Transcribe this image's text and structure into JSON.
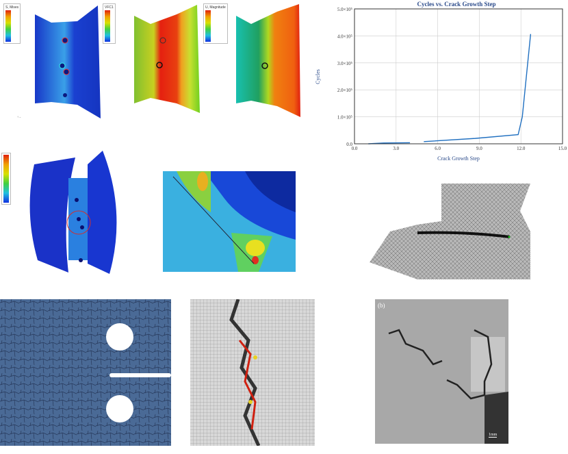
{
  "panels": {
    "fea_stress": {
      "legend_title": "S, Mises"
    },
    "fea_second": {
      "legend_title": "VFC1"
    },
    "fea_displacement": {
      "legend_title": "U, Magnitude"
    },
    "micrograph": {
      "label": "(b)",
      "scale_bar": "1mm"
    }
  },
  "colors": {
    "fea_blue": "#1f3fd0",
    "fea_red": "#e0200c",
    "fea_green": "#7ac62a",
    "chart_line": "#1f6fc0",
    "grain_blue": "#4a6a96"
  },
  "chart_data": {
    "type": "line",
    "title": "Cycles vs. Crack Growth Step",
    "xlabel": "Crack Growth Step",
    "ylabel": "Cycles",
    "xlim": [
      0,
      15
    ],
    "ylim": [
      0,
      500000
    ],
    "x_ticks": [
      "0.0",
      "3.0",
      "6.0",
      "9.0",
      "12.0",
      "15.0"
    ],
    "y_ticks": [
      "0.0",
      "1.0×10⁵",
      "2.0×10⁵",
      "3.0×10⁵",
      "4.0×10⁵",
      "5.0×10⁵"
    ],
    "grid": true,
    "segments": [
      [
        [
          1.0,
          0
        ],
        [
          2.1,
          3000
        ],
        [
          4.0,
          4000
        ]
      ],
      [
        [
          5.0,
          8000
        ],
        [
          8.7,
          20000
        ],
        [
          11.8,
          34000
        ],
        [
          12.1,
          100000
        ],
        [
          12.7,
          407000
        ]
      ]
    ]
  }
}
